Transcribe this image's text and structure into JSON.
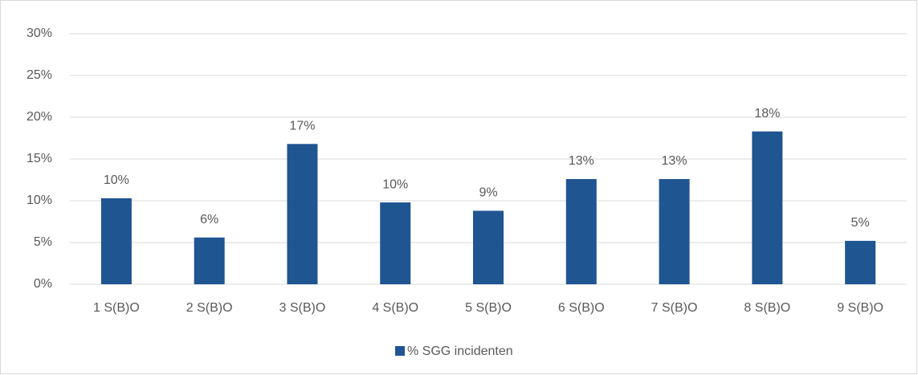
{
  "chart_data": {
    "type": "bar",
    "categories": [
      "1 S(B)O",
      "2 S(B)O",
      "3 S(B)O",
      "4 S(B)O",
      "5 S(B)O",
      "6 S(B)O",
      "7 S(B)O",
      "8 S(B)O",
      "9 S(B)O"
    ],
    "series": [
      {
        "name": "% SGG incidenten",
        "color": "#1f5591",
        "values": [
          10.3,
          5.6,
          16.8,
          9.8,
          8.8,
          12.6,
          12.6,
          18.3,
          5.2
        ],
        "value_labels": [
          "10%",
          "6%",
          "17%",
          "10%",
          "9%",
          "13%",
          "13%",
          "18%",
          "5%"
        ]
      }
    ],
    "ylim": [
      0,
      30
    ],
    "yticks": [
      {
        "value": 0,
        "label": "0%"
      },
      {
        "value": 5,
        "label": "5%"
      },
      {
        "value": 10,
        "label": "10%"
      },
      {
        "value": 15,
        "label": "15%"
      },
      {
        "value": 20,
        "label": "20%"
      },
      {
        "value": 25,
        "label": "25%"
      },
      {
        "value": 30,
        "label": "30%"
      }
    ],
    "grid": true,
    "legend": "bottom"
  }
}
